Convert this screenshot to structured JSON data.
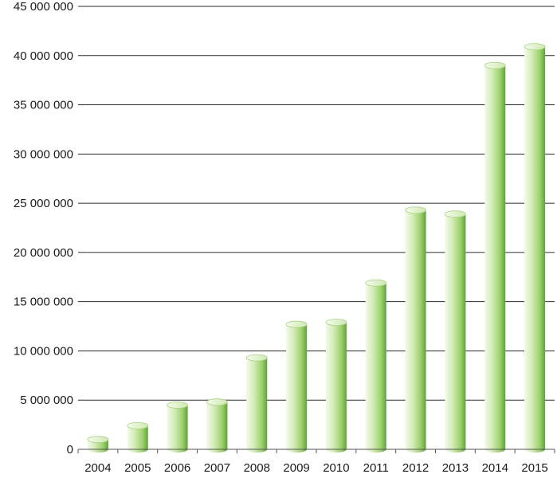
{
  "chart_data": {
    "type": "bar",
    "title": "",
    "xlabel": "",
    "ylabel": "",
    "categories": [
      "2004",
      "2005",
      "2006",
      "2007",
      "2008",
      "2009",
      "2010",
      "2011",
      "2012",
      "2013",
      "2014",
      "2015"
    ],
    "values": [
      1000000,
      2400000,
      4500000,
      4800000,
      9300000,
      12700000,
      12900000,
      16900000,
      24300000,
      23900000,
      39000000,
      40900000
    ],
    "ylim": [
      0,
      45000000
    ],
    "y_ticks": [
      0,
      5000000,
      10000000,
      15000000,
      20000000,
      25000000,
      30000000,
      35000000,
      40000000,
      45000000
    ],
    "y_tick_labels": [
      "0",
      "5 000 000",
      "10 000 000",
      "15 000 000",
      "20 000 000",
      "25 000 000",
      "30 000 000",
      "35 000 000",
      "40 000 000",
      "45 000 000"
    ],
    "grid": true,
    "legend": "none",
    "style": "3d-cylinder",
    "colors": {
      "bar_light": "#f2f9ea",
      "bar_mid": "#b8df8e",
      "bar_dark": "#5aa82e",
      "bar_top": "#e3f2d2",
      "grid": "#2b2b2b",
      "axis": "#555555",
      "text": "#1a1a1a"
    }
  }
}
